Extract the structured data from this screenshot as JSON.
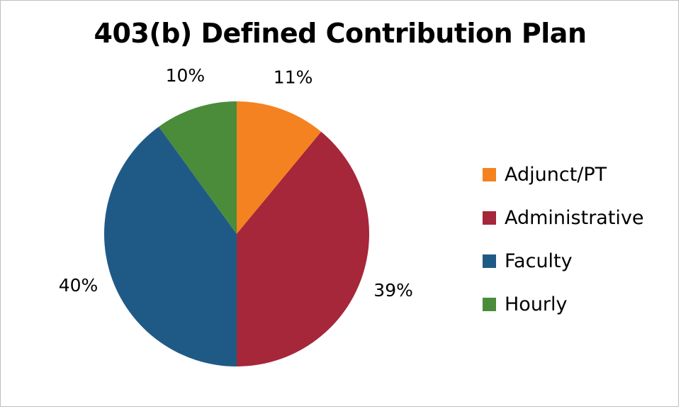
{
  "chart_data": {
    "type": "pie",
    "title": "403(b) Defined Contribution Plan",
    "categories": [
      "Adjunct/PT",
      "Administrative",
      "Faculty",
      "Hourly"
    ],
    "values": [
      11,
      39,
      40,
      10
    ],
    "labels": [
      "11%",
      "39%",
      "40%",
      "10%"
    ],
    "colors": [
      "#f58220",
      "#a6263a",
      "#1f5a87",
      "#4a8c3a"
    ],
    "start_angle_deg": 0,
    "direction": "clockwise",
    "legend": {
      "position": "right",
      "items": [
        "Adjunct/PT",
        "Administrative",
        "Faculty",
        "Hourly"
      ]
    }
  }
}
